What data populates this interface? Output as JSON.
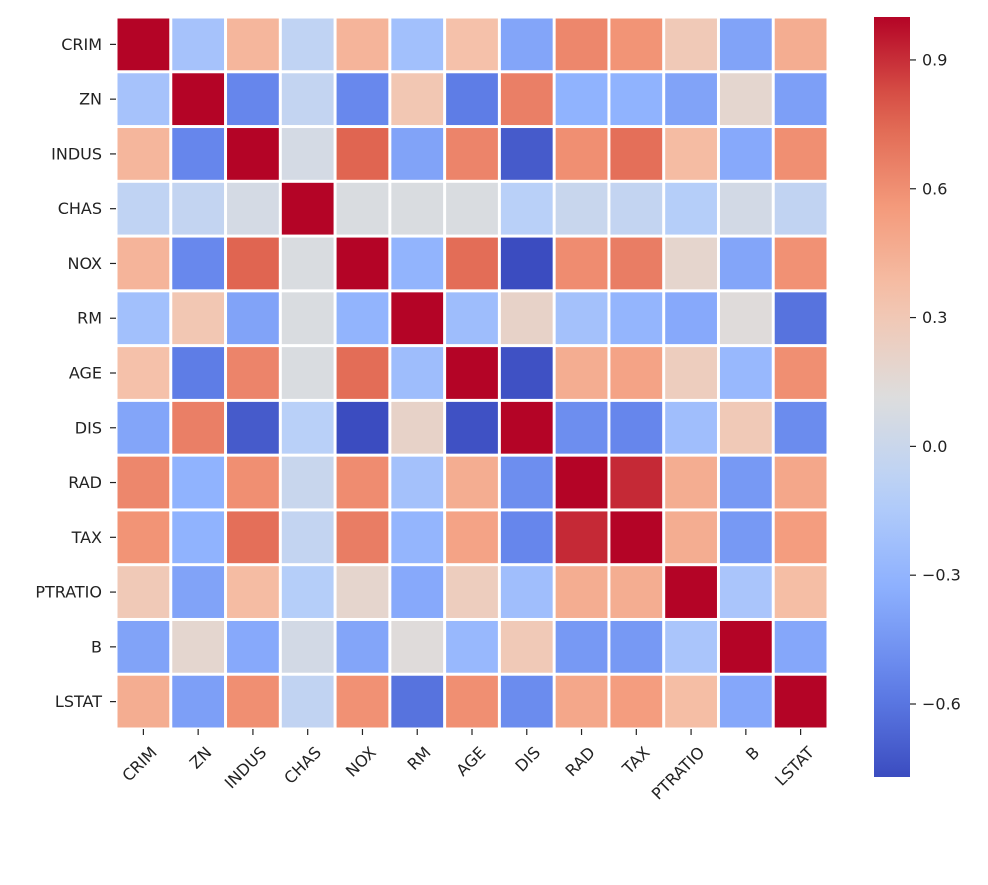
{
  "chart_data": {
    "type": "heatmap",
    "title": "",
    "xlabel": "",
    "ylabel": "",
    "variables": [
      "CRIM",
      "ZN",
      "INDUS",
      "CHAS",
      "NOX",
      "RM",
      "AGE",
      "DIS",
      "RAD",
      "TAX",
      "PTRATIO",
      "B",
      "LSTAT"
    ],
    "values": [
      [
        1.0,
        -0.2,
        0.41,
        -0.06,
        0.42,
        -0.22,
        0.35,
        -0.38,
        0.63,
        0.58,
        0.29,
        -0.39,
        0.46
      ],
      [
        -0.2,
        1.0,
        -0.53,
        -0.04,
        -0.52,
        0.31,
        -0.57,
        0.66,
        -0.31,
        -0.31,
        -0.39,
        0.18,
        -0.41
      ],
      [
        0.41,
        -0.53,
        1.0,
        0.06,
        0.76,
        -0.39,
        0.64,
        -0.71,
        0.6,
        0.72,
        0.38,
        -0.36,
        0.6
      ],
      [
        -0.06,
        -0.04,
        0.06,
        1.0,
        0.09,
        0.09,
        0.09,
        -0.1,
        -0.01,
        -0.04,
        -0.12,
        0.05,
        -0.05
      ],
      [
        0.42,
        -0.52,
        0.76,
        0.09,
        1.0,
        -0.3,
        0.73,
        -0.77,
        0.61,
        0.67,
        0.19,
        -0.38,
        0.59
      ],
      [
        -0.22,
        0.31,
        -0.39,
        0.09,
        -0.3,
        1.0,
        -0.24,
        0.21,
        -0.21,
        -0.29,
        -0.36,
        0.13,
        -0.61
      ],
      [
        0.35,
        -0.57,
        0.64,
        0.09,
        0.73,
        -0.24,
        1.0,
        -0.75,
        0.46,
        0.51,
        0.26,
        -0.27,
        0.6
      ],
      [
        -0.38,
        0.66,
        -0.71,
        -0.1,
        -0.77,
        0.21,
        -0.75,
        1.0,
        -0.49,
        -0.53,
        -0.23,
        0.29,
        -0.5
      ],
      [
        0.63,
        -0.31,
        0.6,
        -0.01,
        0.61,
        -0.21,
        0.46,
        -0.49,
        1.0,
        0.91,
        0.46,
        -0.44,
        0.49
      ],
      [
        0.58,
        -0.31,
        0.72,
        -0.04,
        0.67,
        -0.29,
        0.51,
        -0.53,
        0.91,
        1.0,
        0.46,
        -0.44,
        0.54
      ],
      [
        0.29,
        -0.39,
        0.38,
        -0.12,
        0.19,
        -0.36,
        0.26,
        -0.23,
        0.46,
        0.46,
        1.0,
        -0.18,
        0.37
      ],
      [
        -0.39,
        0.18,
        -0.36,
        0.05,
        -0.38,
        0.13,
        -0.27,
        0.29,
        -0.44,
        -0.44,
        -0.18,
        1.0,
        -0.37
      ],
      [
        0.46,
        -0.41,
        0.6,
        -0.05,
        0.59,
        -0.61,
        0.6,
        -0.5,
        0.49,
        0.54,
        0.37,
        -0.37,
        1.0
      ]
    ],
    "colormap": "coolwarm",
    "vmin": -0.77,
    "vmax": 1.0,
    "colorbar_ticks": [
      0.9,
      0.6,
      0.3,
      0.0,
      -0.3,
      -0.6
    ],
    "colorbar_tick_labels": [
      "0.9",
      "0.6",
      "0.3",
      "0.0",
      "−0.3",
      "−0.6"
    ],
    "grid_line_color": "#ffffff"
  }
}
